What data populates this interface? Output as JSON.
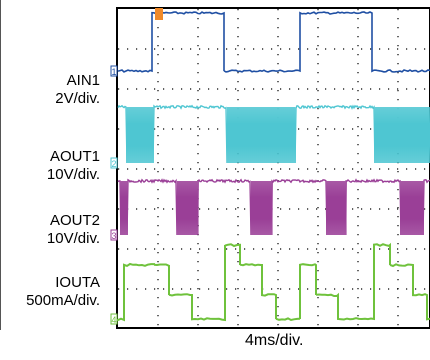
{
  "chart_data": {
    "type": "line",
    "title": "",
    "xlabel": "4ms/div.",
    "grid": true,
    "divisions": {
      "x": 10,
      "y": 8
    },
    "x_unit": "ms",
    "x_per_div": 4,
    "x_range": [
      0,
      40
    ],
    "channels": [
      {
        "name": "AIN1",
        "scale": "2V/div.",
        "marker": "1",
        "color": "#1f4fa3",
        "waveform": "square",
        "high_div": 7.9,
        "low_div": 6.45,
        "burst": false,
        "high_intervals_ms": [
          [
            3.3,
            10.6
          ],
          [
            18.1,
            25.3
          ],
          [
            32.6,
            40.0
          ]
        ]
      },
      {
        "name": "AOUT1",
        "scale": "10V/div.",
        "marker": "2",
        "color": "#4fc6d2",
        "waveform": "pwm_burst",
        "high_div": 5.55,
        "low_div": 4.15,
        "burst": true,
        "burst_intervals_ms": [
          [
            0.8,
            3.6
          ],
          [
            10.9,
            17.8
          ],
          [
            25.6,
            32.4
          ]
        ]
      },
      {
        "name": "AOUT2",
        "scale": "10V/div.",
        "marker": "3",
        "color": "#9a3f97",
        "waveform": "pwm_burst",
        "high_div": 3.7,
        "low_div": 2.35,
        "burst": true,
        "burst_intervals_ms": [
          [
            0.2,
            1.0
          ],
          [
            5.9,
            8.1
          ],
          [
            13.3,
            15.5
          ],
          [
            20.8,
            22.9
          ],
          [
            28.2,
            30.6
          ],
          [
            35.5,
            37.9
          ]
        ]
      },
      {
        "name": "IOUTA",
        "scale": "500mA/div.",
        "marker": "4",
        "color": "#6fc23c",
        "waveform": "steps",
        "steps_ms_div": [
          [
            0.0,
            0.25
          ],
          [
            0.6,
            1.6
          ],
          [
            3.6,
            1.6
          ],
          [
            5.1,
            0.85
          ],
          [
            7.4,
            0.25
          ],
          [
            10.7,
            2.1
          ],
          [
            12.2,
            1.6
          ],
          [
            14.4,
            0.85
          ],
          [
            15.8,
            0.25
          ],
          [
            18.2,
            1.6
          ],
          [
            19.8,
            0.85
          ],
          [
            22.0,
            0.25
          ],
          [
            25.6,
            2.1
          ],
          [
            27.2,
            1.6
          ],
          [
            29.5,
            0.85
          ],
          [
            30.9,
            0.25
          ],
          [
            33.0,
            1.6
          ],
          [
            34.4,
            0.85
          ],
          [
            37.0,
            0.25
          ],
          [
            40.0,
            0.25
          ]
        ]
      }
    ]
  }
}
